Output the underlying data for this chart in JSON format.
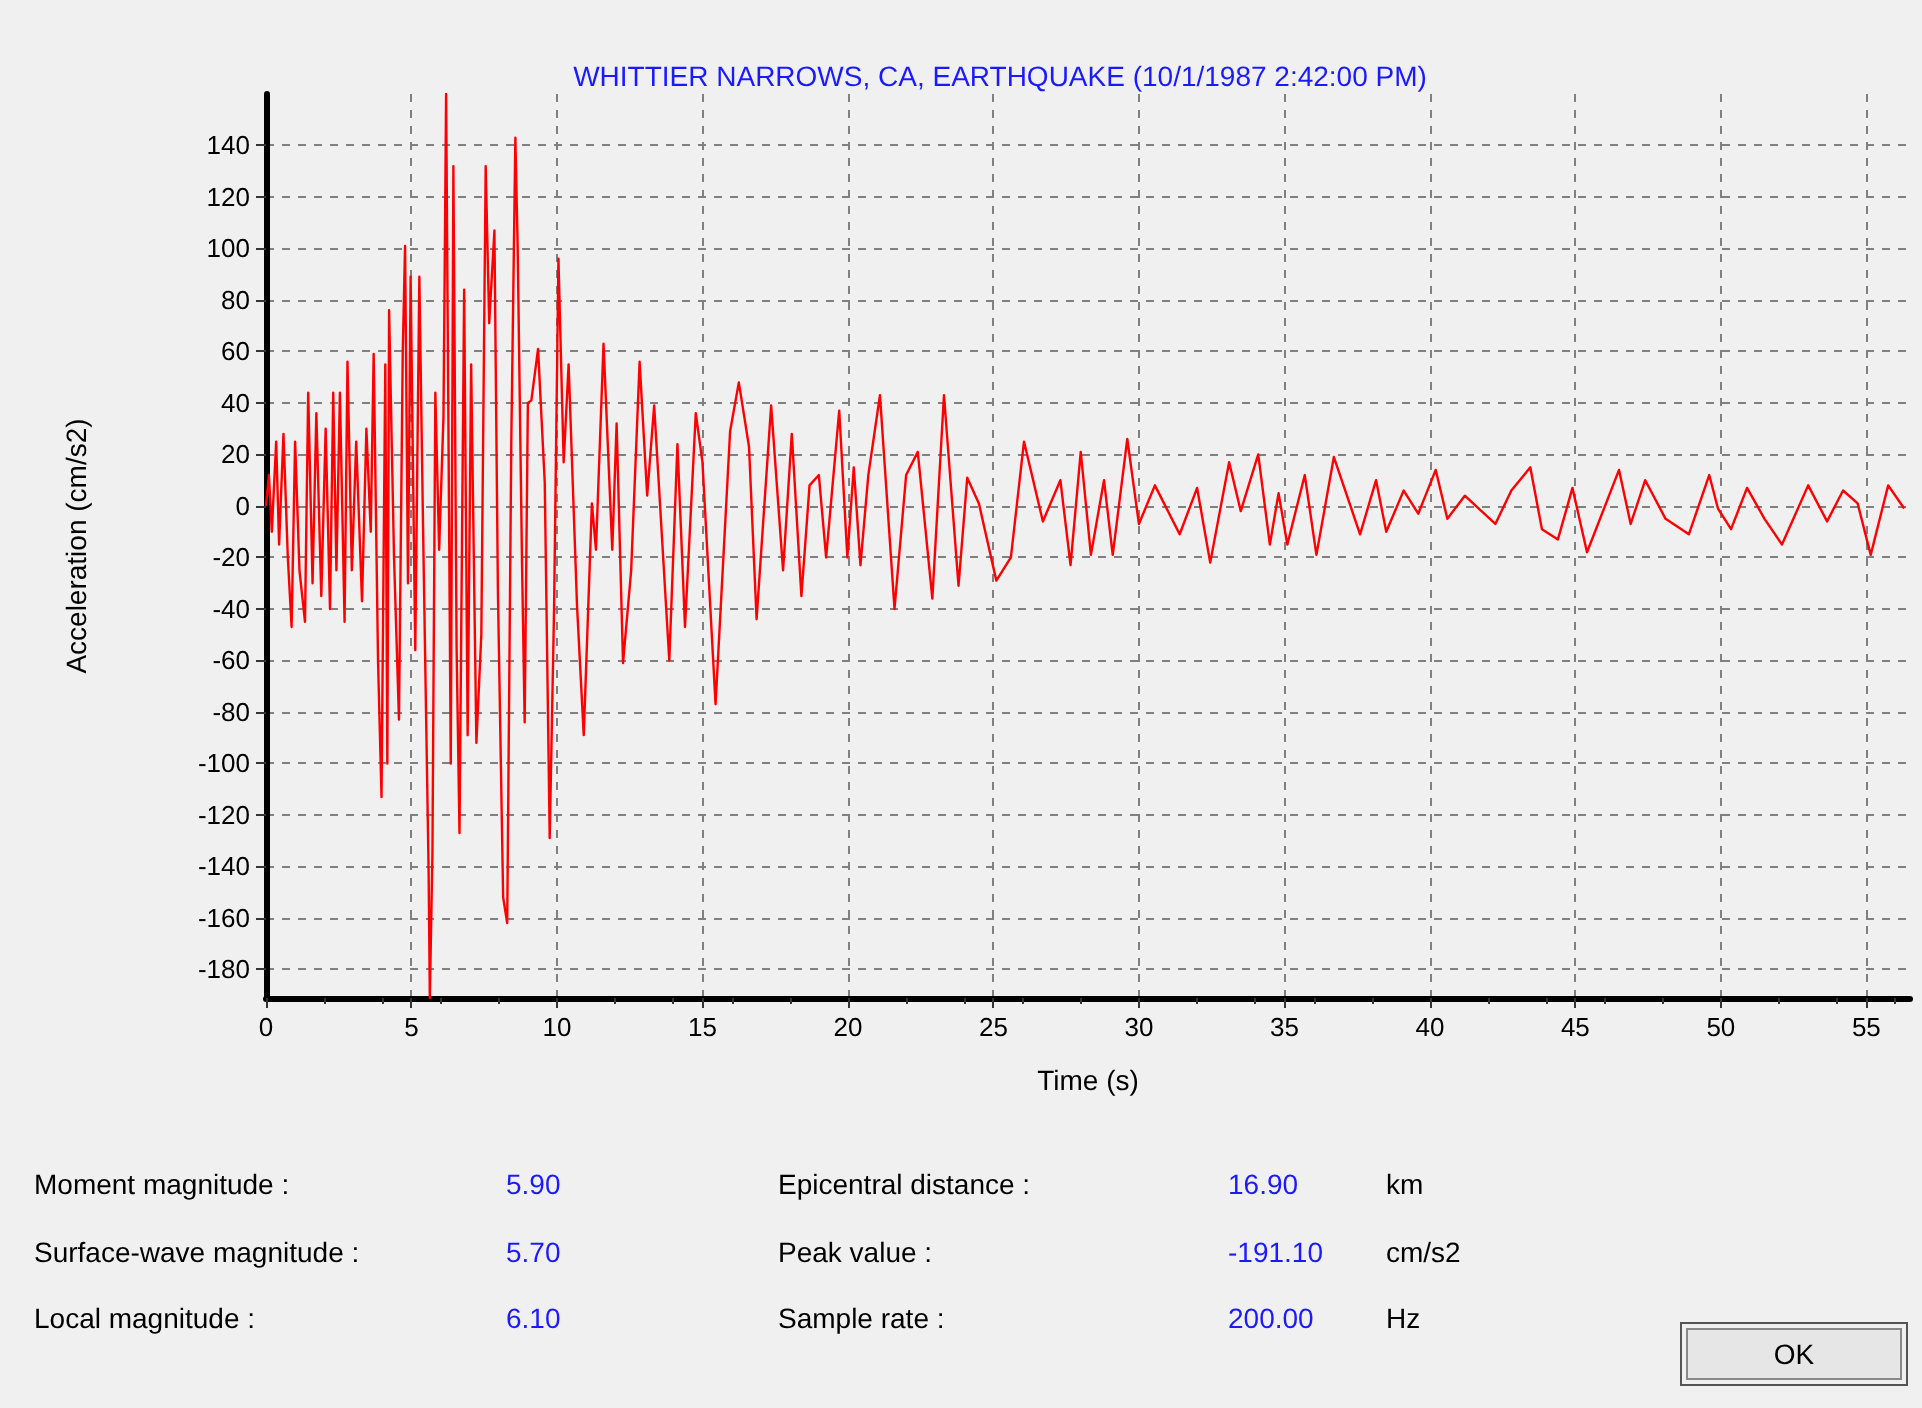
{
  "chart_data": {
    "type": "line",
    "title": "WHITTIER NARROWS, CA, EARTHQUAKE (10/1/1987 2:42:00 PM)",
    "xlabel": "Time (s)",
    "ylabel": "Acceleration (cm/s2)",
    "xlim": [
      0,
      56.5
    ],
    "xticks": [
      0,
      5,
      10,
      15,
      20,
      25,
      30,
      35,
      40,
      45,
      50,
      55
    ],
    "ylim": [
      -191.1,
      160
    ],
    "yticks": [
      -180,
      -160,
      -140,
      -120,
      -100,
      -80,
      -60,
      -40,
      -20,
      0,
      20,
      40,
      60,
      80,
      100,
      120,
      140
    ],
    "grid": true,
    "marker": "none",
    "line_style": "solid",
    "series": [
      {
        "color": "#ff0000",
        "x": [
          0,
          0.1,
          0.2,
          0.35,
          0.45,
          0.6,
          0.75,
          0.88,
          1.0,
          1.15,
          1.34,
          1.45,
          1.6,
          1.73,
          1.9,
          2.05,
          2.2,
          2.31,
          2.42,
          2.54,
          2.7,
          2.8,
          2.95,
          3.1,
          3.3,
          3.45,
          3.6,
          3.7,
          3.85,
          3.97,
          4.1,
          4.17,
          4.23,
          4.4,
          4.57,
          4.7,
          4.78,
          4.88,
          4.97,
          5.13,
          5.27,
          5.4,
          5.59,
          5.63,
          5.72,
          5.82,
          5.95,
          6.1,
          6.19,
          6.35,
          6.44,
          6.55,
          6.65,
          6.81,
          6.93,
          7.05,
          7.23,
          7.4,
          7.55,
          7.67,
          7.85,
          7.97,
          8.15,
          8.29,
          8.43,
          8.57,
          8.65,
          8.8,
          8.89,
          9.0,
          9.12,
          9.35,
          9.58,
          9.75,
          9.9,
          10.05,
          10.23,
          10.4,
          10.69,
          10.92,
          11.2,
          11.34,
          11.6,
          11.9,
          12.05,
          12.27,
          12.55,
          12.84,
          13.1,
          13.34,
          13.86,
          14.14,
          14.4,
          14.77,
          15.0,
          15.45,
          15.95,
          16.25,
          16.6,
          16.86,
          17.36,
          17.77,
          18.07,
          18.4,
          18.68,
          19.0,
          19.25,
          19.7,
          19.98,
          20.2,
          20.43,
          20.7,
          21.1,
          21.6,
          22.0,
          22.4,
          22.9,
          23.3,
          23.8,
          24.1,
          24.5,
          25.1,
          25.6,
          26.05,
          26.7,
          27.3,
          27.65,
          28.0,
          28.35,
          28.8,
          29.1,
          29.6,
          30.0,
          30.55,
          31.4,
          32.0,
          32.45,
          33.1,
          33.5,
          34.1,
          34.5,
          34.8,
          35.1,
          35.7,
          36.1,
          36.7,
          37.6,
          38.15,
          38.5,
          39.1,
          39.6,
          40.2,
          40.6,
          41.2,
          42.25,
          42.8,
          43.45,
          43.85,
          44.4,
          44.9,
          45.4,
          46.5,
          46.9,
          47.4,
          48.1,
          48.9,
          49.6,
          49.9,
          50.35,
          50.9,
          51.5,
          52.1,
          53.0,
          53.65,
          54.2,
          54.7,
          55.15,
          55.75,
          56.3
        ],
        "values": [
          0,
          12,
          -10,
          25,
          -15,
          28,
          -20,
          -47,
          25,
          -25,
          -45,
          44,
          -30,
          36,
          -35,
          30,
          -40,
          44,
          -25,
          44,
          -45,
          56,
          -25,
          25,
          -37,
          30,
          -10,
          59,
          -60,
          -113,
          55,
          -100,
          76,
          -20,
          -83,
          60,
          101,
          -30,
          89,
          -56,
          89,
          -10,
          -143,
          -191.1,
          -135,
          44,
          -17,
          35,
          160,
          -100,
          132,
          -55,
          -127,
          84,
          -89,
          55,
          -92,
          -50,
          132,
          71,
          107,
          -33,
          -152,
          -162,
          25,
          143,
          100,
          -23,
          -84,
          40,
          41,
          61,
          9,
          -129,
          -40,
          96,
          17,
          55,
          -39,
          -89,
          1,
          -17,
          63,
          -17,
          32,
          -61,
          -25,
          56,
          4,
          39,
          -60,
          24,
          -47,
          36,
          17,
          -77,
          29,
          48,
          23,
          -44,
          39,
          -25,
          28,
          -35,
          8,
          12,
          -20,
          37,
          -20,
          15,
          -23,
          12,
          43,
          -40,
          12,
          21,
          -36,
          43,
          -31,
          11,
          1,
          -29,
          -20,
          25,
          -6,
          10,
          -23,
          21,
          -19,
          10,
          -19,
          26,
          -7,
          8,
          -11,
          7,
          -22,
          17,
          -2,
          20,
          -15,
          5,
          -15,
          12,
          -19,
          19,
          -11,
          10,
          -10,
          6,
          -3,
          14,
          -5,
          4,
          -7,
          6,
          15,
          -9,
          -13,
          7,
          -18,
          14,
          -7,
          10,
          -5,
          -11,
          12,
          -1,
          -9,
          7,
          -5,
          -15,
          8,
          -6,
          6,
          1,
          -19,
          8,
          -1
        ]
      }
    ],
    "annotations": [
      "Moment magnitude :",
      "5.90",
      "Epicentral distance :",
      "16.90",
      "km",
      "Surface-wave magnitude :",
      "5.70",
      "Peak value :",
      "-191.10",
      "cm/s2",
      "Local magnitude :",
      "6.10",
      "Sample rate :",
      "200.00",
      "Hz",
      "OK"
    ]
  }
}
